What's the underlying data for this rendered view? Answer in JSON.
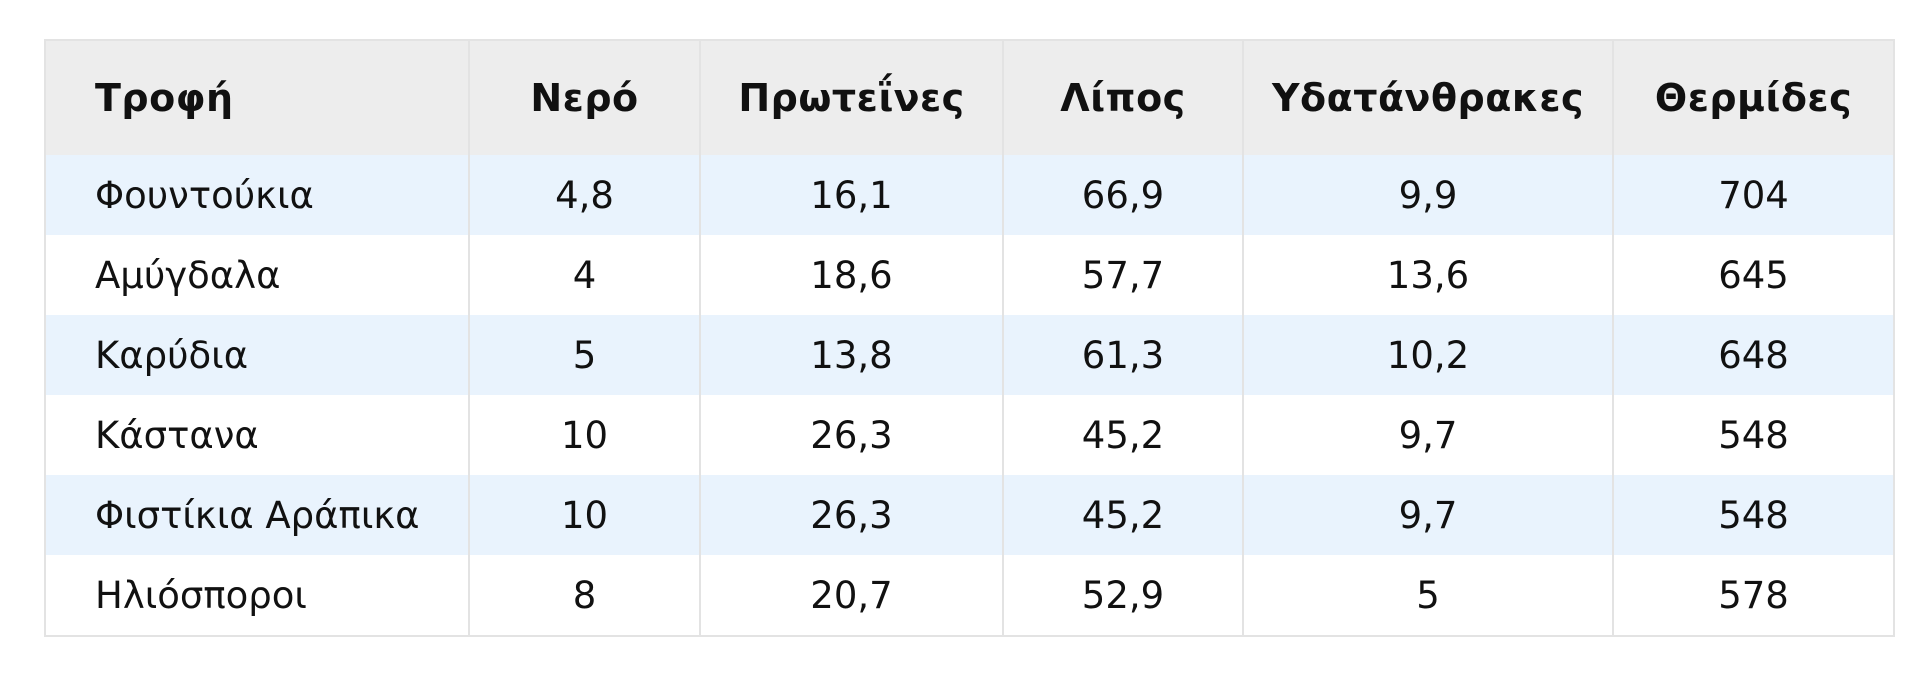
{
  "table": {
    "headers": [
      "Τροφή",
      "Νερό",
      "Πρωτεΐνες",
      "Λίπος",
      "Υδατάνθρακες",
      "Θερμίδες"
    ],
    "rows": [
      [
        "Φουντούκια",
        "4,8",
        "16,1",
        "66,9",
        "9,9",
        "704"
      ],
      [
        "Αμύγδαλα",
        "4",
        "18,6",
        "57,7",
        "13,6",
        "645"
      ],
      [
        "Καρύδια",
        "5",
        "13,8",
        "61,3",
        "10,2",
        "648"
      ],
      [
        "Κάστανα",
        "10",
        "26,3",
        "45,2",
        "9,7",
        "548"
      ],
      [
        "Φιστίκια Αράπικα",
        "10",
        "26,3",
        "45,2",
        "9,7",
        "548"
      ],
      [
        "Ηλιόσποροι",
        "8",
        "20,7",
        "52,9",
        "5",
        "578"
      ]
    ]
  },
  "colors": {
    "header_bg": "#ededed",
    "row_alt_bg": "#e9f3fd",
    "border": "#e3e3e3"
  }
}
